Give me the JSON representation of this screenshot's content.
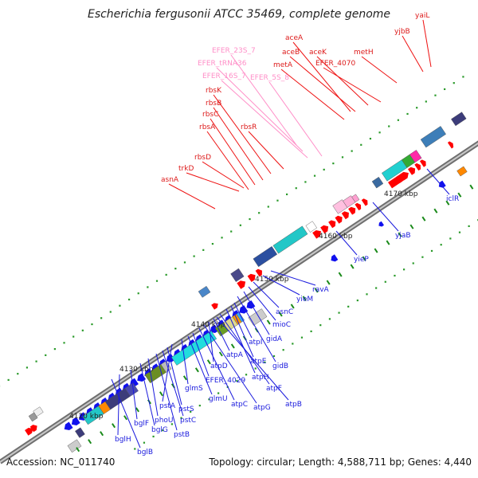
{
  "title": "Escherichia fergusonii ATCC 35469, complete genome",
  "footer": {
    "accession": "Accession: NC_011740",
    "summary": "Topology: circular; Length: 4,588,711 bp; Genes: 4,440"
  },
  "colors": {
    "backbone": "#8a8a8a",
    "forward_gene": "#ff0000",
    "reverse_gene": "#1010ee",
    "rrna": "#ff9fd0",
    "rrna_label": "#ff8fc8",
    "tick_green": "#1a8a1a",
    "dots_green": "#2a9a2a"
  },
  "scale_labels": [
    "4120 kbp",
    "4130 kbp",
    "4140 kbp",
    "4150 kbp",
    "4160 kbp",
    "4170 kbp"
  ],
  "labels": {
    "forward": [
      "yaiL",
      "yjbB",
      "aceA",
      "aceB",
      "aceK",
      "EFER_4070",
      "metH",
      "metA",
      "rbsK",
      "rbsB",
      "rbsC",
      "rbsR",
      "rbsA",
      "rbsD",
      "trkD",
      "asnA"
    ],
    "rrna": [
      "EFER_23S_7",
      "EFER_tRNA36",
      "EFER_16S_7",
      "EFER_5S_8"
    ],
    "reverse": [
      "iclR",
      "yjaB",
      "yieP",
      "ravA",
      "yieM",
      "asnC",
      "mioC",
      "gidA",
      "gidB",
      "atpI",
      "atpE",
      "atpH",
      "atpF",
      "atpB",
      "atpA",
      "atpD",
      "atpG",
      "atpC",
      "EFER_4029",
      "glmU",
      "glmS",
      "pstA",
      "pstS",
      "pstC",
      "pstB",
      "phoU",
      "bglG",
      "bglF",
      "bglH",
      "bglB"
    ]
  }
}
